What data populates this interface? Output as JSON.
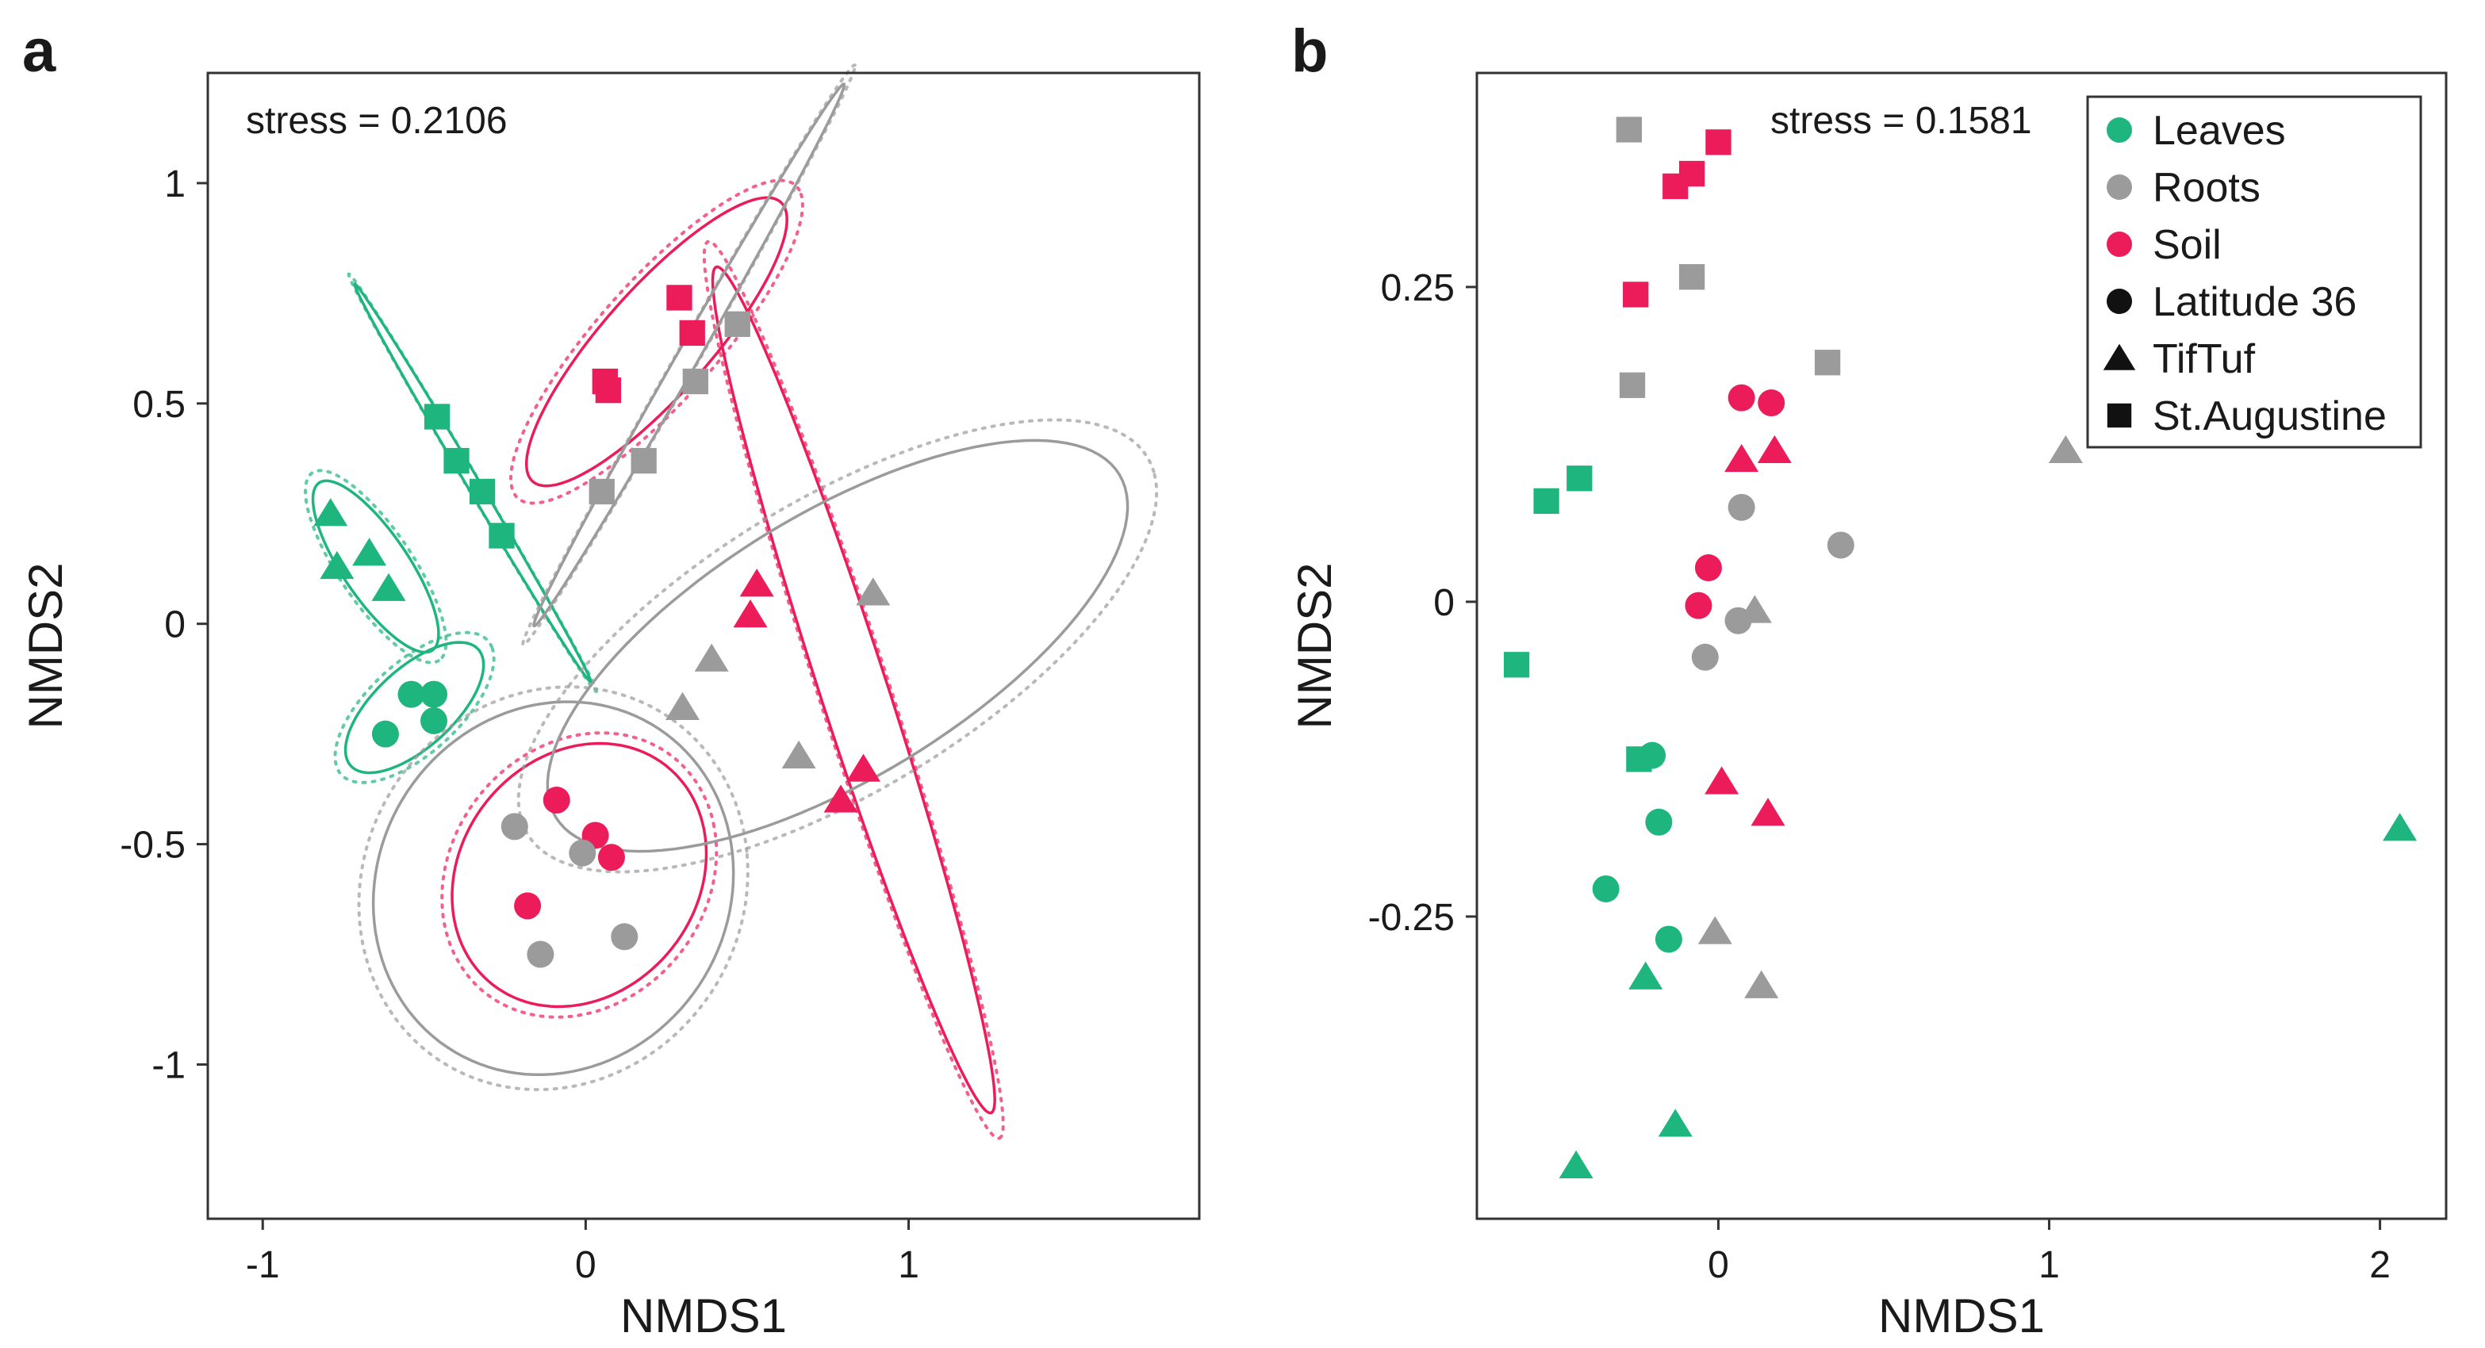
{
  "colors": {
    "leaves": "#1fb57f",
    "roots": "#9b9b9b",
    "soil": "#ec1c5a"
  },
  "chart_data": [
    {
      "type": "scatter",
      "panel": "a",
      "stress": "stress = 0.2106",
      "xlabel": "NMDS1",
      "ylabel": "NMDS2",
      "xlim": [
        -1.17,
        1.9
      ],
      "ylim": [
        -1.35,
        1.25
      ],
      "xticks": [
        -1,
        0,
        1
      ],
      "xtick_labels": [
        "-1",
        "0",
        "1"
      ],
      "yticks": [
        -1,
        -0.5,
        0,
        0.5,
        1
      ],
      "ytick_labels": [
        "-1",
        "-0.5",
        "0",
        "0.5",
        "1"
      ],
      "legend": "none",
      "points": [
        {
          "group": "Leaves",
          "shape": "triangle",
          "x": -0.79,
          "y": 0.25
        },
        {
          "group": "Leaves",
          "shape": "triangle",
          "x": -0.77,
          "y": 0.13
        },
        {
          "group": "Leaves",
          "shape": "triangle",
          "x": -0.67,
          "y": 0.16
        },
        {
          "group": "Leaves",
          "shape": "triangle",
          "x": -0.61,
          "y": 0.08
        },
        {
          "group": "Leaves",
          "shape": "square",
          "x": -0.46,
          "y": 0.47
        },
        {
          "group": "Leaves",
          "shape": "square",
          "x": -0.4,
          "y": 0.37
        },
        {
          "group": "Leaves",
          "shape": "square",
          "x": -0.32,
          "y": 0.3
        },
        {
          "group": "Leaves",
          "shape": "square",
          "x": -0.26,
          "y": 0.2
        },
        {
          "group": "Leaves",
          "shape": "circle",
          "x": -0.62,
          "y": -0.25
        },
        {
          "group": "Leaves",
          "shape": "circle",
          "x": -0.54,
          "y": -0.16
        },
        {
          "group": "Leaves",
          "shape": "circle",
          "x": -0.47,
          "y": -0.16
        },
        {
          "group": "Leaves",
          "shape": "circle",
          "x": -0.47,
          "y": -0.22
        },
        {
          "group": "Soil",
          "shape": "square",
          "x": 0.29,
          "y": 0.74
        },
        {
          "group": "Soil",
          "shape": "square",
          "x": 0.33,
          "y": 0.66
        },
        {
          "group": "Soil",
          "shape": "square",
          "x": 0.06,
          "y": 0.55
        },
        {
          "group": "Soil",
          "shape": "square",
          "x": 0.07,
          "y": 0.53
        },
        {
          "group": "Roots",
          "shape": "square",
          "x": 0.47,
          "y": 0.68
        },
        {
          "group": "Roots",
          "shape": "square",
          "x": 0.34,
          "y": 0.55
        },
        {
          "group": "Roots",
          "shape": "square",
          "x": 0.18,
          "y": 0.37
        },
        {
          "group": "Roots",
          "shape": "square",
          "x": 0.05,
          "y": 0.3
        },
        {
          "group": "Soil",
          "shape": "triangle",
          "x": 0.53,
          "y": 0.09
        },
        {
          "group": "Soil",
          "shape": "triangle",
          "x": 0.51,
          "y": 0.02
        },
        {
          "group": "Soil",
          "shape": "triangle",
          "x": 0.86,
          "y": -0.33
        },
        {
          "group": "Soil",
          "shape": "triangle",
          "x": 0.79,
          "y": -0.4
        },
        {
          "group": "Roots",
          "shape": "triangle",
          "x": 0.89,
          "y": 0.07
        },
        {
          "group": "Roots",
          "shape": "triangle",
          "x": 0.39,
          "y": -0.08
        },
        {
          "group": "Roots",
          "shape": "triangle",
          "x": 0.3,
          "y": -0.19
        },
        {
          "group": "Roots",
          "shape": "triangle",
          "x": 0.66,
          "y": -0.3
        },
        {
          "group": "Soil",
          "shape": "circle",
          "x": -0.09,
          "y": -0.4
        },
        {
          "group": "Soil",
          "shape": "circle",
          "x": 0.03,
          "y": -0.48
        },
        {
          "group": "Soil",
          "shape": "circle",
          "x": 0.08,
          "y": -0.53
        },
        {
          "group": "Soil",
          "shape": "circle",
          "x": -0.18,
          "y": -0.64
        },
        {
          "group": "Roots",
          "shape": "circle",
          "x": -0.22,
          "y": -0.46
        },
        {
          "group": "Roots",
          "shape": "circle",
          "x": -0.01,
          "y": -0.52
        },
        {
          "group": "Roots",
          "shape": "circle",
          "x": 0.12,
          "y": -0.71
        },
        {
          "group": "Roots",
          "shape": "circle",
          "x": -0.14,
          "y": -0.75
        }
      ],
      "ellipses": [
        {
          "group": "Leaves",
          "cx": -0.65,
          "cy": 0.13,
          "rx": 0.26,
          "ry": 0.09,
          "angle": -45,
          "dotted_scale": 1.12
        },
        {
          "group": "Leaves",
          "cx": -0.53,
          "cy": -0.19,
          "rx": 0.24,
          "ry": 0.1,
          "angle": 30,
          "dotted_scale": 1.15
        },
        {
          "group": "Leaves",
          "cx": -0.35,
          "cy": 0.32,
          "rx": 0.58,
          "ry": 0.018,
          "angle": -51,
          "dotted_scale": 1.05
        },
        {
          "group": "Soil",
          "cx": 0.22,
          "cy": 0.64,
          "rx": 0.5,
          "ry": 0.14,
          "angle": 38,
          "dotted_scale": 1.12
        },
        {
          "group": "Soil",
          "cx": 0.83,
          "cy": -0.15,
          "rx": 1.05,
          "ry": 0.1,
          "angle": -66,
          "dotted_scale": 1.06
        },
        {
          "group": "Soil",
          "cx": -0.02,
          "cy": -0.57,
          "rx": 0.4,
          "ry": 0.29,
          "angle": 15,
          "dotted_scale": 1.08
        },
        {
          "group": "Roots",
          "cx": 0.32,
          "cy": 0.61,
          "rx": 0.78,
          "ry": 0.03,
          "angle": 52,
          "dotted_scale": 1.07
        },
        {
          "group": "Roots",
          "cx": 0.78,
          "cy": -0.05,
          "rx": 0.96,
          "ry": 0.32,
          "angle": 22,
          "dotted_scale": 1.1
        },
        {
          "group": "Roots",
          "cx": -0.1,
          "cy": -0.6,
          "rx": 0.56,
          "ry": 0.42,
          "angle": 8,
          "dotted_scale": 1.08
        }
      ]
    },
    {
      "type": "scatter",
      "panel": "b",
      "stress": "stress = 0.1581",
      "xlabel": "NMDS1",
      "ylabel": "NMDS2",
      "xlim": [
        -0.73,
        2.2
      ],
      "ylim": [
        -0.49,
        0.42
      ],
      "xticks": [
        0,
        1,
        2
      ],
      "xtick_labels": [
        "0",
        "1",
        "2"
      ],
      "yticks": [
        -0.25,
        0,
        0.25
      ],
      "ytick_labels": [
        "-0.25",
        "0",
        "0.25"
      ],
      "legend": "top-right",
      "legend_entries": [
        {
          "label": "Leaves",
          "marker": "circle",
          "group": "Leaves"
        },
        {
          "label": "Roots",
          "marker": "circle",
          "group": "Roots"
        },
        {
          "label": "Soil",
          "marker": "circle",
          "group": "Soil"
        },
        {
          "label": "Latitude 36",
          "marker": "circle",
          "group": "none"
        },
        {
          "label": "TifTuf",
          "marker": "triangle",
          "group": "none"
        },
        {
          "label": "St.Augustine",
          "marker": "square",
          "group": "none"
        }
      ],
      "points": [
        {
          "group": "Roots",
          "shape": "square",
          "x": -0.27,
          "y": 0.375
        },
        {
          "group": "Soil",
          "shape": "square",
          "x": 0.0,
          "y": 0.365
        },
        {
          "group": "Soil",
          "shape": "square",
          "x": -0.08,
          "y": 0.34
        },
        {
          "group": "Soil",
          "shape": "square",
          "x": -0.13,
          "y": 0.33
        },
        {
          "group": "Roots",
          "shape": "square",
          "x": -0.08,
          "y": 0.258
        },
        {
          "group": "Soil",
          "shape": "square",
          "x": -0.25,
          "y": 0.244
        },
        {
          "group": "Roots",
          "shape": "square",
          "x": 0.33,
          "y": 0.19
        },
        {
          "group": "Roots",
          "shape": "square",
          "x": -0.26,
          "y": 0.172
        },
        {
          "group": "Leaves",
          "shape": "square",
          "x": -0.42,
          "y": 0.098
        },
        {
          "group": "Leaves",
          "shape": "square",
          "x": -0.52,
          "y": 0.08
        },
        {
          "group": "Leaves",
          "shape": "square",
          "x": -0.61,
          "y": -0.05
        },
        {
          "group": "Leaves",
          "shape": "square",
          "x": -0.24,
          "y": -0.125
        },
        {
          "group": "Soil",
          "shape": "circle",
          "x": 0.07,
          "y": 0.162
        },
        {
          "group": "Soil",
          "shape": "circle",
          "x": 0.16,
          "y": 0.158
        },
        {
          "group": "Roots",
          "shape": "circle",
          "x": 0.07,
          "y": 0.075
        },
        {
          "group": "Roots",
          "shape": "circle",
          "x": 0.37,
          "y": 0.045
        },
        {
          "group": "Soil",
          "shape": "circle",
          "x": -0.03,
          "y": 0.027
        },
        {
          "group": "Soil",
          "shape": "circle",
          "x": -0.06,
          "y": -0.003
        },
        {
          "group": "Roots",
          "shape": "circle",
          "x": 0.06,
          "y": -0.015
        },
        {
          "group": "Roots",
          "shape": "circle",
          "x": -0.04,
          "y": -0.044
        },
        {
          "group": "Leaves",
          "shape": "circle",
          "x": -0.2,
          "y": -0.122
        },
        {
          "group": "Leaves",
          "shape": "circle",
          "x": -0.18,
          "y": -0.175
        },
        {
          "group": "Leaves",
          "shape": "circle",
          "x": -0.34,
          "y": -0.228
        },
        {
          "group": "Leaves",
          "shape": "circle",
          "x": -0.15,
          "y": -0.268
        },
        {
          "group": "Soil",
          "shape": "triangle",
          "x": 0.07,
          "y": 0.113
        },
        {
          "group": "Soil",
          "shape": "triangle",
          "x": 0.17,
          "y": 0.12
        },
        {
          "group": "Roots",
          "shape": "triangle",
          "x": 0.11,
          "y": -0.007
        },
        {
          "group": "Roots",
          "shape": "triangle",
          "x": 1.05,
          "y": 0.12
        },
        {
          "group": "Soil",
          "shape": "triangle",
          "x": 0.01,
          "y": -0.143
        },
        {
          "group": "Soil",
          "shape": "triangle",
          "x": 0.15,
          "y": -0.168
        },
        {
          "group": "Leaves",
          "shape": "triangle",
          "x": 2.06,
          "y": -0.18
        },
        {
          "group": "Roots",
          "shape": "triangle",
          "x": -0.01,
          "y": -0.262
        },
        {
          "group": "Roots",
          "shape": "triangle",
          "x": 0.13,
          "y": -0.305
        },
        {
          "group": "Leaves",
          "shape": "triangle",
          "x": -0.22,
          "y": -0.298
        },
        {
          "group": "Leaves",
          "shape": "triangle",
          "x": -0.13,
          "y": -0.415
        },
        {
          "group": "Leaves",
          "shape": "triangle",
          "x": -0.43,
          "y": -0.448
        }
      ]
    }
  ]
}
